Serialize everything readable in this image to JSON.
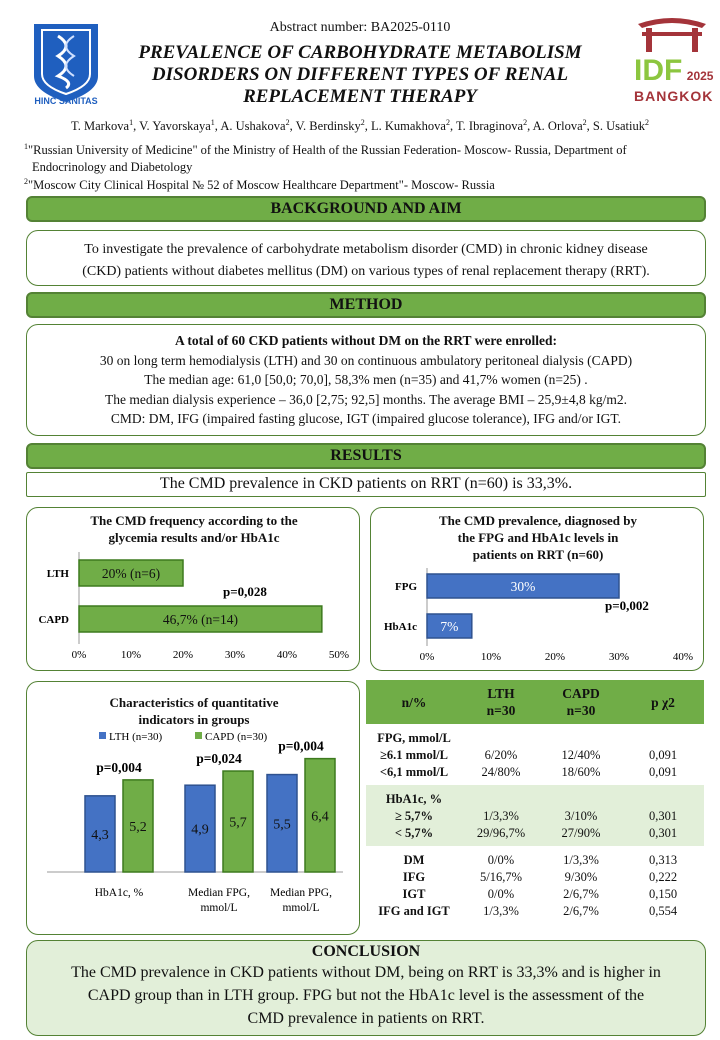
{
  "header": {
    "abstract_number": "Abstract number: BA2025-0110",
    "title_lines": [
      "PREVALENCE OF CARBOHYDRATE METABOLISM",
      "DISORDERS ON DIFFERENT TYPES OF RENAL",
      "REPLACEMENT THERAPY"
    ],
    "logo_left_text": "HINC SANITAS",
    "logo_right_idf": "IDF",
    "logo_right_year": "2025",
    "logo_right_city": "BANGKOK"
  },
  "authors": [
    {
      "name": "T. Markova",
      "sup": "1"
    },
    {
      "name": "V. Yavorskaya",
      "sup": "1"
    },
    {
      "name": "A. Ushakova",
      "sup": "2"
    },
    {
      "name": "V. Berdinsky",
      "sup": "2"
    },
    {
      "name": "L. Kumakhova",
      "sup": "2"
    },
    {
      "name": "T. Ibraginova",
      "sup": "2"
    },
    {
      "name": "A. Orlova",
      "sup": "2"
    },
    {
      "name": "S. Usatiuk",
      "sup": "2"
    }
  ],
  "affiliations": [
    {
      "sup": "1",
      "line1": "\"Russian University of Medicine\" of the Ministry of Health of the Russian Federation- Moscow- Russia, Department of",
      "line2": "Endocrinology and Diabetology"
    },
    {
      "sup": "2",
      "line1": "\"Moscow City Clinical Hospital № 52 of Moscow Healthcare Department\"- Moscow- Russia"
    }
  ],
  "sections": {
    "background_title": "BACKGROUND AND AIM",
    "background_lines": [
      "To investigate the prevalence of carbohydrate metabolism disorder (CMD) in chronic kidney disease",
      "(CKD) patients without diabetes mellitus (DM) on various types of renal replacement therapy (RRT)."
    ],
    "method_title": "METHOD",
    "method_head": "A total of 60 CKD patients without DM on the RRT were enrolled:",
    "method_lines": [
      "30 on long term hemodialysis (LTH) and 30 on continuous ambulatory peritoneal dialysis (CAPD)",
      "The median age: 61,0 [50,0; 70,0], 58,3% men (n=35) and 41,7% women (n=25) .",
      "The median dialysis experience – 36,0 [2,75; 92,5] months. The average BMI – 25,9±4,8 kg/m2.",
      "CMD: DM, IFG (impaired fasting glucose, IGT (impaired glucose tolerance), IFG and/or IGT."
    ],
    "results_title": "RESULTS",
    "results_summary": "The CMD prevalence in CKD patients on RRT (n=60) is 33,3%."
  },
  "colors": {
    "green": "#70ad47",
    "green_dark": "#548235",
    "green_light": "#e2efd9",
    "blue": "#4472c4",
    "bar_green": "#70ad47"
  },
  "chart_data": [
    {
      "type": "bar",
      "orientation": "horizontal",
      "title_lines": [
        "The CMD frequency according to the",
        "glycemia results and/or HbA1c"
      ],
      "categories": [
        "LTH",
        "CAPD"
      ],
      "values": [
        20,
        46.7
      ],
      "data_labels": [
        "20% (n=6)",
        "46,7% (n=14)"
      ],
      "annotation": "p=0,028",
      "xlim": [
        0,
        50
      ],
      "xticks": [
        "0%",
        "10%",
        "20%",
        "30%",
        "40%",
        "50%"
      ]
    },
    {
      "type": "bar",
      "orientation": "horizontal",
      "title_lines": [
        "The CMD prevalence, diagnosed by",
        "the FPG  and HbA1c levels in",
        "patients on RRT (n=60)"
      ],
      "categories": [
        "FPG",
        "HbA1c"
      ],
      "values": [
        30,
        7
      ],
      "data_labels": [
        "30%",
        "7%"
      ],
      "annotation": "p=0,002",
      "xlim": [
        0,
        40
      ],
      "xticks": [
        "0%",
        "10%",
        "20%",
        "30%",
        "40%"
      ]
    },
    {
      "type": "bar",
      "orientation": "vertical",
      "title_lines": [
        "Characteristics of quantitative",
        "indicators in groups"
      ],
      "categories": [
        "HbA1c, %",
        "Median FPG, mmol/L",
        "Median PPG, mmol/L"
      ],
      "category_lines": [
        [
          "HbA1c, %"
        ],
        [
          "Median FPG,",
          "mmol/L"
        ],
        [
          "Median PPG,",
          "mmol/L"
        ]
      ],
      "series": [
        {
          "name": "LTH (n=30)",
          "values": [
            4.3,
            4.9,
            5.5
          ],
          "labels": [
            "4,3",
            "4,9",
            "5,5"
          ]
        },
        {
          "name": "CAPD (n=30)",
          "values": [
            5.2,
            5.7,
            6.4
          ],
          "labels": [
            "5,2",
            "5,7",
            "6,4"
          ]
        }
      ],
      "annotations": [
        "p=0,004",
        "p=0,024",
        "p=0,004"
      ],
      "ylim": [
        0,
        7
      ]
    }
  ],
  "table": {
    "headers": [
      "n/%",
      "LTH\nn=30",
      "CAPD\nn=30",
      "p χ2"
    ],
    "header_lth": [
      "LTH",
      "n=30"
    ],
    "header_capd": [
      "CAPD",
      "n=30"
    ],
    "groups": [
      {
        "labels": [
          "FPG, mmol/L",
          "≥6.1 mmol/L",
          "<6,1 mmol/L"
        ],
        "lth": [
          "",
          "6/20%",
          "24/80%"
        ],
        "capd": [
          "",
          "12/40%",
          "18/60%"
        ],
        "p": [
          "",
          "0,091",
          "0,091"
        ]
      },
      {
        "labels": [
          "HbA1c, %",
          "≥ 5,7%",
          "< 5,7%"
        ],
        "lth": [
          "",
          "1/3,3%",
          "29/96,7%"
        ],
        "capd": [
          "",
          "3/10%",
          "27/90%"
        ],
        "p": [
          "",
          "0,301",
          "0,301"
        ]
      },
      {
        "labels": [
          "DM",
          "IFG",
          "IGT",
          "IFG and IGT"
        ],
        "lth": [
          "0/0%",
          "5/16,7%",
          "0/0%",
          "1/3,3%"
        ],
        "capd": [
          "1/3,3%",
          "9/30%",
          "2/6,7%",
          "2/6,7%"
        ],
        "p": [
          "0,313",
          "0,222",
          "0,150",
          "0,554"
        ]
      }
    ]
  },
  "conclusion": {
    "title": "CONCLUSION",
    "lines": [
      "The CMD prevalence in CKD patients without DM, being on RRT is 33,3% and is higher in",
      "CAPD group than in LTH group. FPG but not the HbA1c level is the assessment of the",
      "CMD prevalence in patients on RRT."
    ]
  }
}
